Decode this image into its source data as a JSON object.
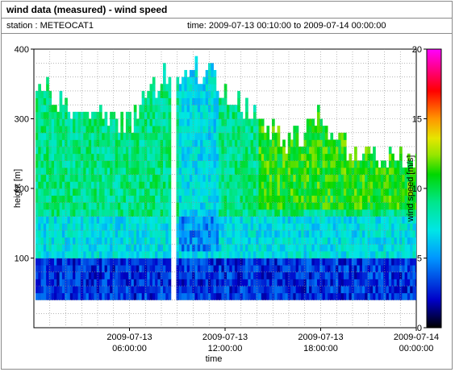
{
  "header": {
    "title": "wind data (measured) - wind speed",
    "station": "station : METEOCAT1",
    "time_range": "time: 2009-07-13 00:10:00 to 2009-07-14 00:00:00"
  },
  "chart_data": {
    "type": "heatmap",
    "xlabel": "time",
    "ylabel": "height [m]",
    "colorbar_label": "wind speed [m/s]",
    "xlim_hours": [
      0,
      24
    ],
    "ylim": [
      0,
      400
    ],
    "clim": [
      0,
      20
    ],
    "x_ticks": [
      {
        "hours": 6,
        "line1": "2009-07-13",
        "line2": "06:00:00"
      },
      {
        "hours": 12,
        "line1": "2009-07-13",
        "line2": "12:00:00"
      },
      {
        "hours": 18,
        "line1": "2009-07-13",
        "line2": "18:00:00"
      },
      {
        "hours": 24,
        "line1": "2009-07-14",
        "line2": "00:00:00"
      }
    ],
    "y_ticks": [
      100,
      200,
      300,
      400
    ],
    "colorbar_ticks": [
      0,
      5,
      10,
      15,
      20
    ],
    "grid": true,
    "data_gap_hours": [
      8.6,
      8.9
    ],
    "data_height_min": 40,
    "profile_top_height": [
      {
        "t": 0.2,
        "h": 355
      },
      {
        "t": 2,
        "h": 310
      },
      {
        "t": 4,
        "h": 300
      },
      {
        "t": 6,
        "h": 295
      },
      {
        "t": 7,
        "h": 330
      },
      {
        "t": 8,
        "h": 355
      },
      {
        "t": 9,
        "h": 365
      },
      {
        "t": 11,
        "h": 365
      },
      {
        "t": 12,
        "h": 325
      },
      {
        "t": 14,
        "h": 300
      },
      {
        "t": 16,
        "h": 260
      },
      {
        "t": 18,
        "h": 300
      },
      {
        "t": 20,
        "h": 245
      },
      {
        "t": 22,
        "h": 240
      },
      {
        "t": 24,
        "h": 240
      }
    ],
    "layers": [
      {
        "h_from": 40,
        "h_to": 100,
        "speed": 3
      },
      {
        "h_from": 100,
        "h_to": 160,
        "speed": 7
      },
      {
        "h_from": 160,
        "h_to": 400,
        "speed": 9
      }
    ]
  }
}
